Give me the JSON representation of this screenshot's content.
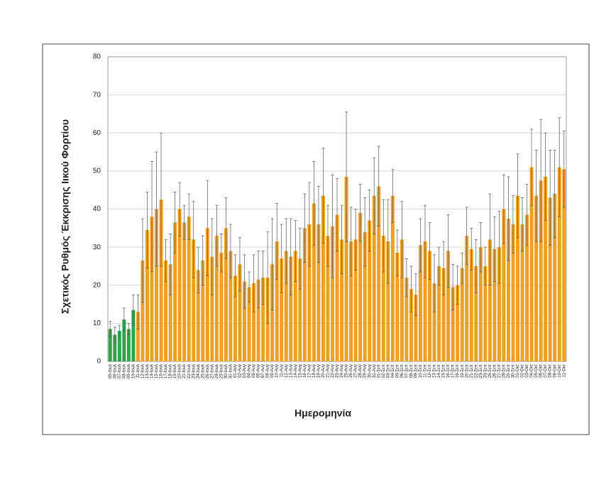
{
  "chart_data": {
    "type": "bar",
    "y_label": "Σχετικός Ρυθμός Έκκρισης Ιικού Φορτίου",
    "x_label": "Ημερομηνία",
    "categories": [
      "05-Ιουλ",
      "06-Ιουλ",
      "07-Ιουλ",
      "08-Ιουλ",
      "09-Ιουλ",
      "10-Ιουλ",
      "11-Ιουλ",
      "12-Ιουλ",
      "13-Ιουλ",
      "14-Ιουλ",
      "15-Ιουλ",
      "16-Ιουλ",
      "17-Ιουλ",
      "18-Ιουλ",
      "19-Ιουλ",
      "20-Ιουλ",
      "21-Ιουλ",
      "22-Ιουλ",
      "23-Ιουλ",
      "24-Ιουλ",
      "25-Ιουλ",
      "26-Ιουλ",
      "27-Ιουλ",
      "28-Ιουλ",
      "29-Ιουλ",
      "30-Ιουλ",
      "31-Ιουλ",
      "01-Αυγ",
      "02-Αυγ",
      "03-Αυγ",
      "04-Αυγ",
      "05-Αυγ",
      "06-Αυγ",
      "07-Αυγ",
      "08-Αυγ",
      "09-Αυγ",
      "10-Αυγ",
      "11-Αυγ",
      "12-Αυγ",
      "13-Αυγ",
      "14-Αυγ",
      "15-Αυγ",
      "16-Αυγ",
      "17-Αυγ",
      "18-Αυγ",
      "19-Αυγ",
      "20-Αυγ",
      "21-Αυγ",
      "22-Αυγ",
      "23-Αυγ",
      "24-Αυγ",
      "25-Αυγ",
      "26-Αυγ",
      "27-Αυγ",
      "28-Αυγ",
      "29-Αυγ",
      "30-Αυγ",
      "31-Αυγ",
      "01-Σεπ",
      "02-Σεπ",
      "03-Σεπ",
      "04-Σεπ",
      "05-Σεπ",
      "06-Σεπ",
      "07-Σεπ",
      "08-Σεπ",
      "09-Σεπ",
      "10-Σεπ",
      "11-Σεπ",
      "12-Σεπ",
      "13-Σεπ",
      "14-Σεπ",
      "15-Σεπ",
      "16-Σεπ",
      "17-Σεπ",
      "18-Σεπ",
      "19-Σεπ",
      "20-Σεπ",
      "21-Σεπ",
      "22-Σεπ",
      "23-Σεπ",
      "24-Σεπ",
      "25-Σεπ",
      "26-Σεπ",
      "27-Σεπ",
      "28-Σεπ",
      "29-Σεπ",
      "30-Σεπ",
      "01-Οκτ",
      "02-Οκτ",
      "03-Οκτ",
      "04-Οκτ",
      "05-Οκτ",
      "06-Οκτ",
      "07-Οκτ",
      "08-Οκτ",
      "09-Οκτ",
      "10-Οκτ",
      "11-Οκτ"
    ],
    "values": [
      8.5,
      7,
      8,
      11,
      8.5,
      13.5,
      13,
      26.5,
      34.5,
      38,
      40,
      42.5,
      26.5,
      25.5,
      36.5,
      40,
      36.5,
      38,
      32,
      24,
      26.5,
      35,
      27.5,
      33,
      28.5,
      35,
      29,
      22.5,
      25.5,
      21,
      19.5,
      20.5,
      21.5,
      22,
      22,
      25.5,
      31.5,
      27,
      29,
      27.5,
      29,
      27,
      35,
      36,
      41.5,
      36,
      43.5,
      33,
      35.5,
      38.5,
      32,
      48.5,
      31.5,
      32,
      39,
      34,
      37,
      43.5,
      46,
      33,
      31.5,
      43.5,
      28.5,
      32,
      22,
      19,
      17.5,
      30.5,
      31.5,
      29,
      20.5,
      25,
      24.5,
      29,
      19.5,
      20,
      24.5,
      33,
      29.5,
      25,
      30,
      25,
      32,
      29.5,
      30,
      40,
      37.5,
      36,
      43.5,
      36,
      38.5,
      51,
      43.5,
      47.5,
      48.5,
      43,
      44,
      51,
      50.5
    ],
    "errors": [
      2,
      2,
      1.5,
      3,
      1.5,
      4,
      4.5,
      11,
      10,
      14.5,
      15,
      17.5,
      5.5,
      8,
      8,
      7,
      4.5,
      6,
      10,
      6,
      6.5,
      12.5,
      10,
      8,
      5,
      8,
      7,
      5.5,
      7,
      7,
      4,
      7.5,
      7.5,
      7,
      12,
      12,
      10,
      9,
      8.5,
      10,
      8,
      8,
      9,
      11,
      11,
      10,
      12.5,
      8,
      13.5,
      9.5,
      9,
      17,
      9,
      8,
      7.5,
      9,
      8,
      10,
      10.5,
      9.5,
      11,
      7,
      6,
      10,
      5,
      6,
      5.5,
      7,
      9.5,
      7.5,
      7.5,
      5,
      7,
      9.5,
      6,
      5,
      4,
      7.5,
      5.5,
      7,
      6.5,
      5,
      12,
      8.5,
      9.5,
      9,
      11,
      7.5,
      11,
      7,
      8,
      10,
      12,
      16,
      11.5,
      12.5,
      11.5,
      13,
      10
    ],
    "colors": [
      "#2ea44f",
      "#2ea44f",
      "#2ea44f",
      "#2ea44f",
      "#2ea44f",
      "#2ea44f",
      "#f0a020",
      "#f0a020",
      "#f0a020",
      "#f0a020",
      "#f0a020",
      "#f0a020",
      "#f0a020",
      "#f0a020",
      "#f0a020",
      "#f0a020",
      "#f0a020",
      "#f0a020",
      "#f0a020",
      "#f0a020",
      "#f0a020",
      "#f0a020",
      "#f0a020",
      "#f0a020",
      "#f0a020",
      "#f0a020",
      "#f0a020",
      "#f0a020",
      "#f0a020",
      "#f0a020",
      "#f0a020",
      "#f0a020",
      "#f0a020",
      "#f0a020",
      "#f0a020",
      "#f0a020",
      "#f0a020",
      "#f0a020",
      "#f0a020",
      "#f0a020",
      "#f0a020",
      "#f0a020",
      "#f0a020",
      "#f0a020",
      "#f0a020",
      "#f0a020",
      "#f0a020",
      "#f0a020",
      "#f0a020",
      "#f0a020",
      "#f0a020",
      "#f0a020",
      "#f0a020",
      "#f0a020",
      "#f0a020",
      "#f0a020",
      "#f0a020",
      "#f0a020",
      "#f0a020",
      "#f0a020",
      "#f0a020",
      "#f0a020",
      "#f0a020",
      "#f0a020",
      "#f0a020",
      "#f0a020",
      "#f0a020",
      "#f0a020",
      "#f0a020",
      "#f0a020",
      "#f0a020",
      "#f0a020",
      "#f0a020",
      "#f0a020",
      "#f0a020",
      "#f0a020",
      "#f0a020",
      "#f0a020",
      "#f0a020",
      "#f0a020",
      "#f0a020",
      "#f0a020",
      "#f0a020",
      "#f0a020",
      "#f0a020",
      "#f0a020",
      "#f0a020",
      "#f0a020",
      "#f0a020",
      "#f0a020",
      "#f0a020",
      "#f0a020",
      "#f0a020",
      "#f0a020",
      "#f0a020",
      "#f0a020",
      "#f0a020",
      "#f0a020",
      "#f0a020"
    ],
    "ylim": [
      0,
      80
    ],
    "yticks": [
      0,
      10,
      20,
      30,
      40,
      50,
      60,
      70,
      80
    ],
    "grid": true
  }
}
